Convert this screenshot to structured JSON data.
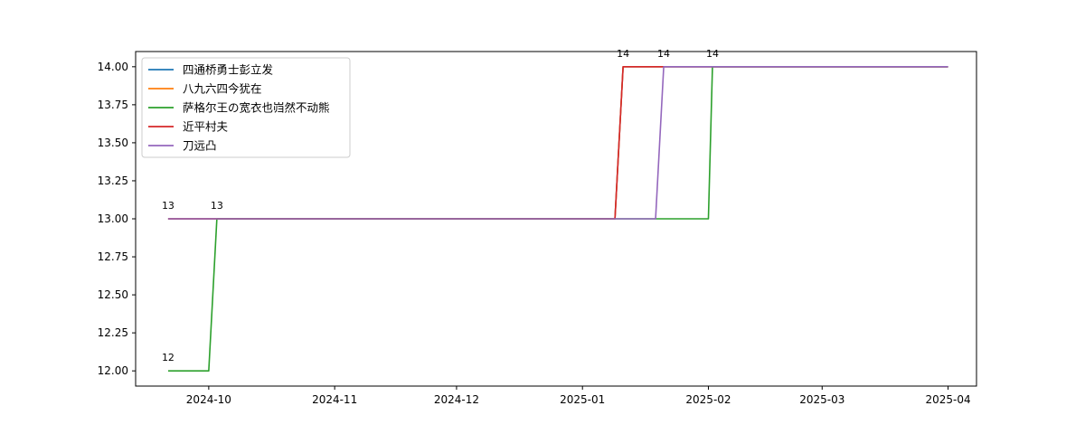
{
  "chart_data": {
    "type": "line",
    "title": "",
    "xlabel": "",
    "ylabel": "",
    "grid": false,
    "legend_placement": "top-left",
    "x_range": [
      "2024-09-13",
      "2025-04-08"
    ],
    "ylim": [
      11.9,
      14.1
    ],
    "x_ticks": [
      {
        "date": "2024-10-01",
        "label": "2024-10"
      },
      {
        "date": "2024-11-01",
        "label": "2024-11"
      },
      {
        "date": "2024-12-01",
        "label": "2024-12"
      },
      {
        "date": "2025-01-01",
        "label": "2025-01"
      },
      {
        "date": "2025-02-01",
        "label": "2025-02"
      },
      {
        "date": "2025-03-01",
        "label": "2025-03"
      },
      {
        "date": "2025-04-01",
        "label": "2025-04"
      }
    ],
    "y_ticks": [
      {
        "value": 12.0,
        "label": "12.00"
      },
      {
        "value": 12.25,
        "label": "12.25"
      },
      {
        "value": 12.5,
        "label": "12.50"
      },
      {
        "value": 12.75,
        "label": "12.75"
      },
      {
        "value": 13.0,
        "label": "13.00"
      },
      {
        "value": 13.25,
        "label": "13.25"
      },
      {
        "value": 13.5,
        "label": "13.50"
      },
      {
        "value": 13.75,
        "label": "13.75"
      },
      {
        "value": 14.0,
        "label": "14.00"
      }
    ],
    "series": [
      {
        "name": "四通桥勇士彭立发",
        "color": "#1f77b4",
        "points": [
          [
            "2024-09-21",
            13
          ],
          [
            "2025-01-09",
            13
          ],
          [
            "2025-01-11",
            14
          ],
          [
            "2025-04-01",
            14
          ]
        ]
      },
      {
        "name": "八九六四今犹在",
        "color": "#ff7f0e",
        "points": [
          [
            "2024-09-21",
            13
          ],
          [
            "2025-01-09",
            13
          ],
          [
            "2025-01-11",
            14
          ],
          [
            "2025-04-01",
            14
          ]
        ]
      },
      {
        "name": "萨格尔王の宽衣也岿然不动熊",
        "color": "#2ca02c",
        "points": [
          [
            "2024-09-21",
            12
          ],
          [
            "2024-10-01",
            12
          ],
          [
            "2024-10-03",
            13
          ],
          [
            "2025-02-01",
            13
          ],
          [
            "2025-02-02",
            14
          ],
          [
            "2025-04-01",
            14
          ]
        ]
      },
      {
        "name": "近平村夫",
        "color": "#d62728",
        "points": [
          [
            "2024-09-21",
            13
          ],
          [
            "2025-01-09",
            13
          ],
          [
            "2025-01-11",
            14
          ],
          [
            "2025-04-01",
            14
          ]
        ]
      },
      {
        "name": "刀远凸",
        "color": "#9467bd",
        "points": [
          [
            "2024-09-21",
            13
          ],
          [
            "2025-01-19",
            13
          ],
          [
            "2025-01-21",
            14
          ],
          [
            "2025-04-01",
            14
          ]
        ]
      }
    ],
    "annotations": [
      {
        "date": "2024-09-21",
        "value": 13,
        "text": "13"
      },
      {
        "date": "2024-10-03",
        "value": 13,
        "text": "13"
      },
      {
        "date": "2024-09-21",
        "value": 12,
        "text": "12"
      },
      {
        "date": "2025-01-11",
        "value": 14,
        "text": "14"
      },
      {
        "date": "2025-01-21",
        "value": 14,
        "text": "14"
      },
      {
        "date": "2025-02-02",
        "value": 14,
        "text": "14"
      }
    ]
  }
}
